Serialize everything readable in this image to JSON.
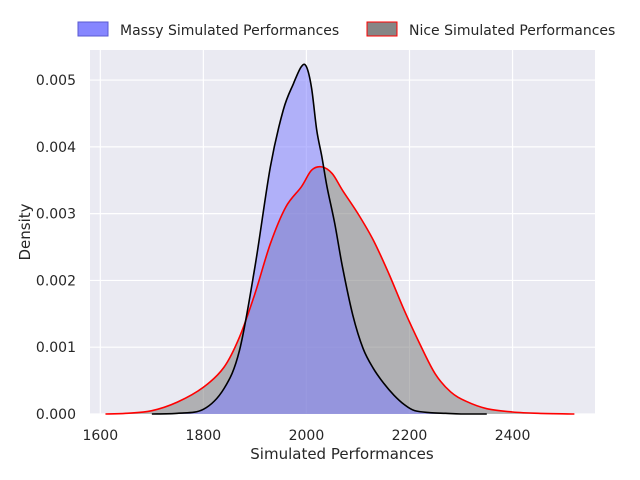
{
  "chart_data": {
    "type": "area",
    "xlabel": "Simulated Performances",
    "ylabel": "Density",
    "xlim": [
      1580,
      2560
    ],
    "ylim": [
      0,
      0.00545
    ],
    "xticks": [
      1600,
      1800,
      2000,
      2200,
      2400
    ],
    "yticks": [
      0.0,
      0.001,
      0.002,
      0.003,
      0.004,
      0.005
    ],
    "ytick_labels": [
      "0.000",
      "0.001",
      "0.002",
      "0.003",
      "0.004",
      "0.005"
    ],
    "grid": true,
    "legend_position": "top, outside plot",
    "series": [
      {
        "name": "Massy Simulated Performances",
        "fill": "#8080ff",
        "line": "#000000",
        "x": [
          1700,
          1750,
          1800,
          1840,
          1870,
          1900,
          1930,
          1955,
          1975,
          1990,
          2000,
          2010,
          2020,
          2030,
          2040,
          2055,
          2070,
          2090,
          2110,
          2130,
          2150,
          2170,
          2190,
          2210,
          2240,
          2270,
          2300,
          2350
        ],
        "y": [
          0.0,
          1e-05,
          7e-05,
          0.00038,
          0.00095,
          0.0022,
          0.0037,
          0.00455,
          0.00495,
          0.0052,
          0.0052,
          0.00488,
          0.00425,
          0.00385,
          0.0034,
          0.00285,
          0.0022,
          0.00148,
          0.00098,
          0.00068,
          0.00046,
          0.00028,
          0.00014,
          5e-05,
          2e-05,
          1e-05,
          0.0,
          0.0
        ]
      },
      {
        "name": "Nice Simulated Performances",
        "fill": "#808080",
        "line": "#ff0000",
        "x": [
          1610,
          1650,
          1700,
          1750,
          1800,
          1840,
          1870,
          1900,
          1930,
          1960,
          1990,
          2010,
          2030,
          2050,
          2070,
          2100,
          2130,
          2160,
          2190,
          2220,
          2250,
          2280,
          2310,
          2350,
          2400,
          2450,
          2520
        ],
        "y": [
          0.0,
          1e-05,
          5e-05,
          0.00018,
          0.0004,
          0.0007,
          0.00115,
          0.0018,
          0.00255,
          0.0031,
          0.0034,
          0.00365,
          0.0037,
          0.0036,
          0.00335,
          0.003,
          0.0026,
          0.0021,
          0.00155,
          0.00105,
          0.0006,
          0.00033,
          0.00019,
          8e-05,
          3e-05,
          1e-05,
          0.0
        ]
      }
    ]
  }
}
